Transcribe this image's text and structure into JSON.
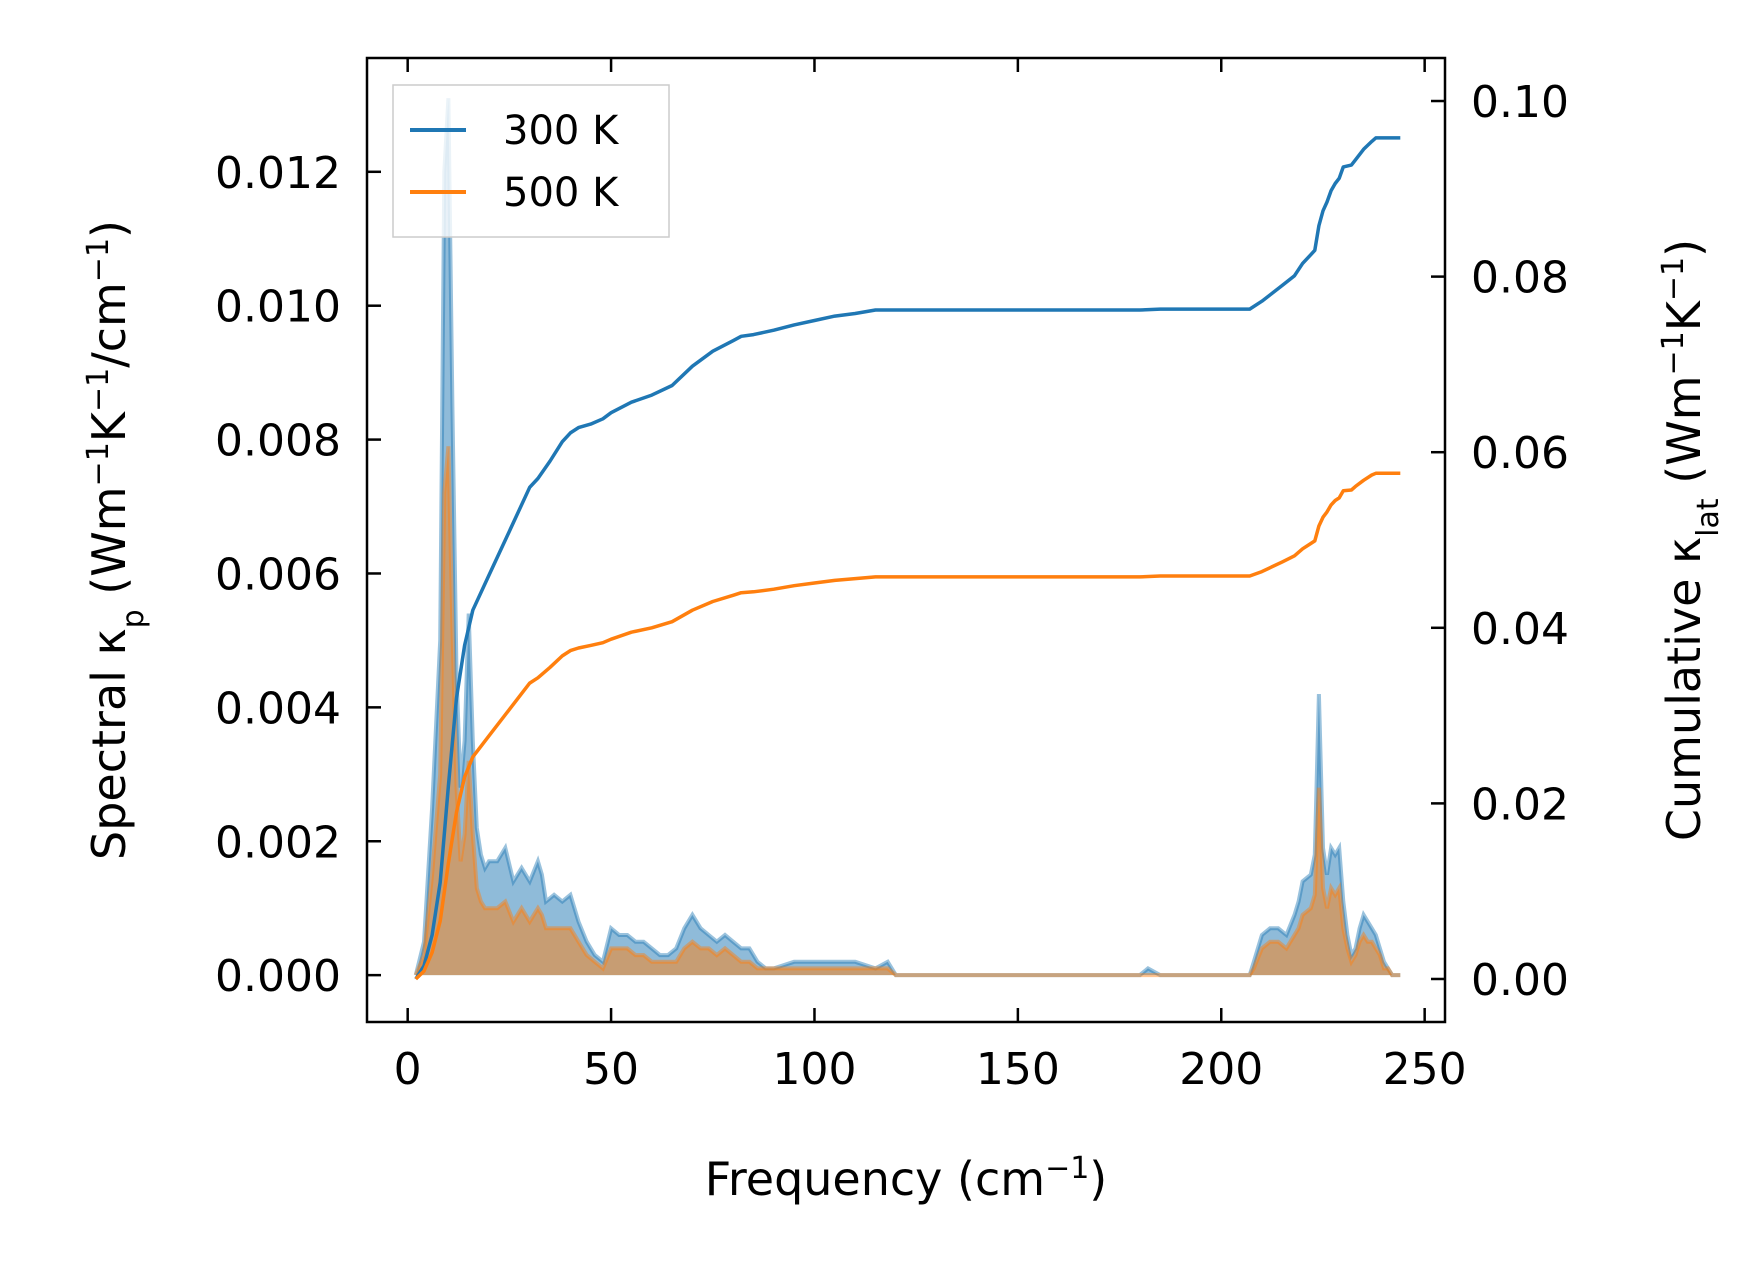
{
  "chart_data": {
    "type": "line",
    "xlabel_base": "Frequency (cm",
    "xlabel_sup": "−1",
    "xlabel_tail": ")",
    "ylabel_left": {
      "t1": "Spectral κ",
      "sub": "p",
      "t2": " (Wm",
      "s1": "−1",
      "t3": "K",
      "s2": "−1",
      "t4": "/cm",
      "s3": "−1",
      "t5": ")"
    },
    "ylabel_right": {
      "t1": "Cumulative κ",
      "sub": "lat",
      "t2": " (Wm",
      "s1": "−1",
      "t3": "K",
      "s2": "−1",
      "t4": ")"
    },
    "xlim": [
      -10,
      255
    ],
    "ylim_left": [
      -0.0007,
      0.0137
    ],
    "ylim_right": [
      -0.0049,
      0.1049
    ],
    "xticks": [
      0,
      50,
      100,
      150,
      200,
      250
    ],
    "xtick_labels": [
      "0",
      "50",
      "100",
      "150",
      "200",
      "250"
    ],
    "yticks_left": [
      0,
      0.002,
      0.004,
      0.006,
      0.008,
      0.01,
      0.012
    ],
    "ytick_labels_left": [
      "0.000",
      "0.002",
      "0.004",
      "0.006",
      "0.008",
      "0.010",
      "0.012"
    ],
    "yticks_right": [
      0,
      0.02,
      0.04,
      0.06,
      0.08,
      0.1
    ],
    "ytick_labels_right": [
      "0.00",
      "0.02",
      "0.04",
      "0.06",
      "0.08",
      "0.10"
    ],
    "grid": false,
    "legend_position": "upper-left",
    "series": [
      {
        "name": "300 K",
        "color": "#1f77b4",
        "spectral_x": [
          2,
          4,
          6,
          8,
          9,
          10,
          11,
          12,
          13,
          14,
          15,
          16,
          17,
          18,
          19,
          20,
          22,
          24,
          26,
          28,
          30,
          32,
          33,
          34,
          36,
          38,
          40,
          42,
          44,
          46,
          48,
          50,
          52,
          54,
          56,
          58,
          60,
          62,
          64,
          66,
          68,
          70,
          72,
          74,
          76,
          78,
          80,
          82,
          84,
          86,
          88,
          90,
          95,
          100,
          105,
          110,
          115,
          118,
          120,
          150,
          180,
          182,
          185,
          205,
          207,
          208,
          210,
          212,
          214,
          216,
          218,
          219,
          220,
          222,
          223,
          224,
          225,
          226,
          227,
          228,
          229,
          230,
          231,
          232,
          233,
          234,
          235,
          236,
          237,
          238,
          239,
          240,
          241,
          242,
          243,
          244
        ],
        "spectral_y": [
          0,
          0.0005,
          0.0025,
          0.005,
          0.012,
          0.0131,
          0.0085,
          0.0045,
          0.0028,
          0.0035,
          0.0054,
          0.0035,
          0.0022,
          0.0018,
          0.0016,
          0.0017,
          0.0017,
          0.0019,
          0.0014,
          0.0016,
          0.0014,
          0.0017,
          0.0015,
          0.0011,
          0.0012,
          0.0011,
          0.0012,
          0.0008,
          0.0005,
          0.0003,
          0.0002,
          0.0007,
          0.0006,
          0.0006,
          0.0005,
          0.0005,
          0.0004,
          0.0003,
          0.0003,
          0.0004,
          0.0007,
          0.0009,
          0.0007,
          0.0006,
          0.0005,
          0.0006,
          0.0005,
          0.0004,
          0.0004,
          0.0002,
          0.0001,
          0.0001,
          0.0002,
          0.0002,
          0.0002,
          0.0002,
          0.0001,
          0.0002,
          0.0,
          0.0,
          0.0,
          0.0001,
          0.0,
          0.0,
          0.0,
          0.0002,
          0.0006,
          0.0007,
          0.0007,
          0.0006,
          0.0009,
          0.0011,
          0.0014,
          0.0015,
          0.0018,
          0.0042,
          0.0019,
          0.0015,
          0.0019,
          0.0018,
          0.0019,
          0.0011,
          0.0006,
          0.0003,
          0.0004,
          0.0007,
          0.0009,
          0.0008,
          0.0007,
          0.0006,
          0.0004,
          0.0002,
          0.0001,
          0.0,
          0.0,
          0.0
        ],
        "cumulative_x": [
          2,
          4,
          6,
          8,
          10,
          12,
          14,
          16,
          20,
          25,
          30,
          32,
          35,
          38,
          40,
          42,
          45,
          48,
          50,
          55,
          60,
          65,
          70,
          75,
          80,
          82,
          85,
          90,
          95,
          100,
          105,
          110,
          115,
          120,
          150,
          180,
          185,
          205,
          207,
          210,
          215,
          218,
          220,
          222,
          223,
          224,
          225,
          226,
          227,
          228,
          229,
          230,
          232,
          233,
          235,
          237,
          238,
          240,
          244
        ],
        "cumulative_y": [
          0,
          0.0015,
          0.005,
          0.011,
          0.022,
          0.032,
          0.038,
          0.042,
          0.046,
          0.051,
          0.056,
          0.057,
          0.059,
          0.0612,
          0.0622,
          0.0628,
          0.0632,
          0.0638,
          0.0645,
          0.0657,
          0.0665,
          0.0676,
          0.0698,
          0.0715,
          0.0727,
          0.0732,
          0.0734,
          0.0739,
          0.0745,
          0.075,
          0.0755,
          0.0758,
          0.0762,
          0.0762,
          0.0762,
          0.0762,
          0.0763,
          0.0763,
          0.0763,
          0.0772,
          0.079,
          0.0801,
          0.0815,
          0.0825,
          0.083,
          0.0858,
          0.0875,
          0.0885,
          0.0898,
          0.0906,
          0.0912,
          0.0925,
          0.0927,
          0.0933,
          0.0945,
          0.0954,
          0.0958,
          0.0958,
          0.0958
        ]
      },
      {
        "name": "500 K",
        "color": "#ff7f0e",
        "spectral_x": [
          2,
          4,
          6,
          8,
          9,
          10,
          11,
          12,
          13,
          14,
          15,
          16,
          17,
          18,
          19,
          20,
          22,
          24,
          26,
          28,
          30,
          32,
          33,
          34,
          36,
          38,
          40,
          42,
          44,
          46,
          48,
          50,
          52,
          54,
          56,
          58,
          60,
          62,
          64,
          66,
          68,
          70,
          72,
          74,
          76,
          78,
          80,
          82,
          84,
          86,
          88,
          90,
          95,
          100,
          105,
          110,
          115,
          118,
          120,
          150,
          180,
          182,
          185,
          205,
          207,
          208,
          210,
          212,
          214,
          216,
          218,
          219,
          220,
          222,
          223,
          224,
          225,
          226,
          227,
          228,
          229,
          230,
          231,
          232,
          233,
          234,
          235,
          236,
          237,
          238,
          239,
          240,
          241,
          242,
          243,
          244
        ],
        "spectral_y": [
          0,
          0.0003,
          0.0015,
          0.003,
          0.0072,
          0.0079,
          0.0052,
          0.0028,
          0.0017,
          0.0021,
          0.0032,
          0.0021,
          0.0013,
          0.0011,
          0.001,
          0.001,
          0.001,
          0.0011,
          0.0008,
          0.001,
          0.0008,
          0.001,
          0.0009,
          0.0007,
          0.0007,
          0.0007,
          0.0007,
          0.0005,
          0.0003,
          0.0002,
          0.0001,
          0.0004,
          0.0004,
          0.0004,
          0.0003,
          0.0003,
          0.0002,
          0.0002,
          0.0002,
          0.0002,
          0.0004,
          0.0005,
          0.0004,
          0.0004,
          0.0003,
          0.0004,
          0.0003,
          0.0002,
          0.0002,
          0.0001,
          0.0001,
          0.0001,
          0.0001,
          0.0001,
          0.0001,
          0.0001,
          0.0001,
          0.0001,
          0.0,
          0.0,
          0.0,
          0.0,
          0.0,
          0.0,
          0.0,
          0.0001,
          0.0004,
          0.0005,
          0.0005,
          0.0004,
          0.0006,
          0.0007,
          0.0009,
          0.001,
          0.0012,
          0.0028,
          0.0013,
          0.001,
          0.0013,
          0.0012,
          0.0013,
          0.0007,
          0.0004,
          0.0002,
          0.0003,
          0.0005,
          0.0006,
          0.0005,
          0.0005,
          0.0004,
          0.0003,
          0.0001,
          0.0001,
          0.0,
          0.0,
          0.0
        ],
        "cumulative_x": [
          2,
          4,
          6,
          8,
          10,
          12,
          14,
          16,
          20,
          25,
          30,
          32,
          35,
          38,
          40,
          42,
          45,
          48,
          50,
          55,
          60,
          65,
          70,
          75,
          80,
          82,
          85,
          90,
          95,
          100,
          105,
          110,
          115,
          120,
          150,
          180,
          185,
          205,
          207,
          210,
          215,
          218,
          220,
          222,
          223,
          224,
          225,
          226,
          227,
          228,
          229,
          230,
          232,
          233,
          235,
          237,
          238,
          240,
          244
        ],
        "cumulative_y": [
          0,
          0.0009,
          0.003,
          0.0066,
          0.0132,
          0.019,
          0.023,
          0.0253,
          0.0277,
          0.0307,
          0.0337,
          0.0343,
          0.0355,
          0.0368,
          0.0374,
          0.0377,
          0.038,
          0.0383,
          0.0387,
          0.0395,
          0.04,
          0.0407,
          0.042,
          0.043,
          0.0437,
          0.044,
          0.0441,
          0.0444,
          0.0448,
          0.0451,
          0.0454,
          0.0456,
          0.0458,
          0.0458,
          0.0458,
          0.0458,
          0.0459,
          0.0459,
          0.0459,
          0.0464,
          0.0475,
          0.0482,
          0.049,
          0.0496,
          0.0499,
          0.0516,
          0.0526,
          0.0532,
          0.054,
          0.0545,
          0.0548,
          0.0556,
          0.0557,
          0.0561,
          0.0568,
          0.0574,
          0.0576,
          0.0576,
          0.0576
        ]
      }
    ]
  }
}
